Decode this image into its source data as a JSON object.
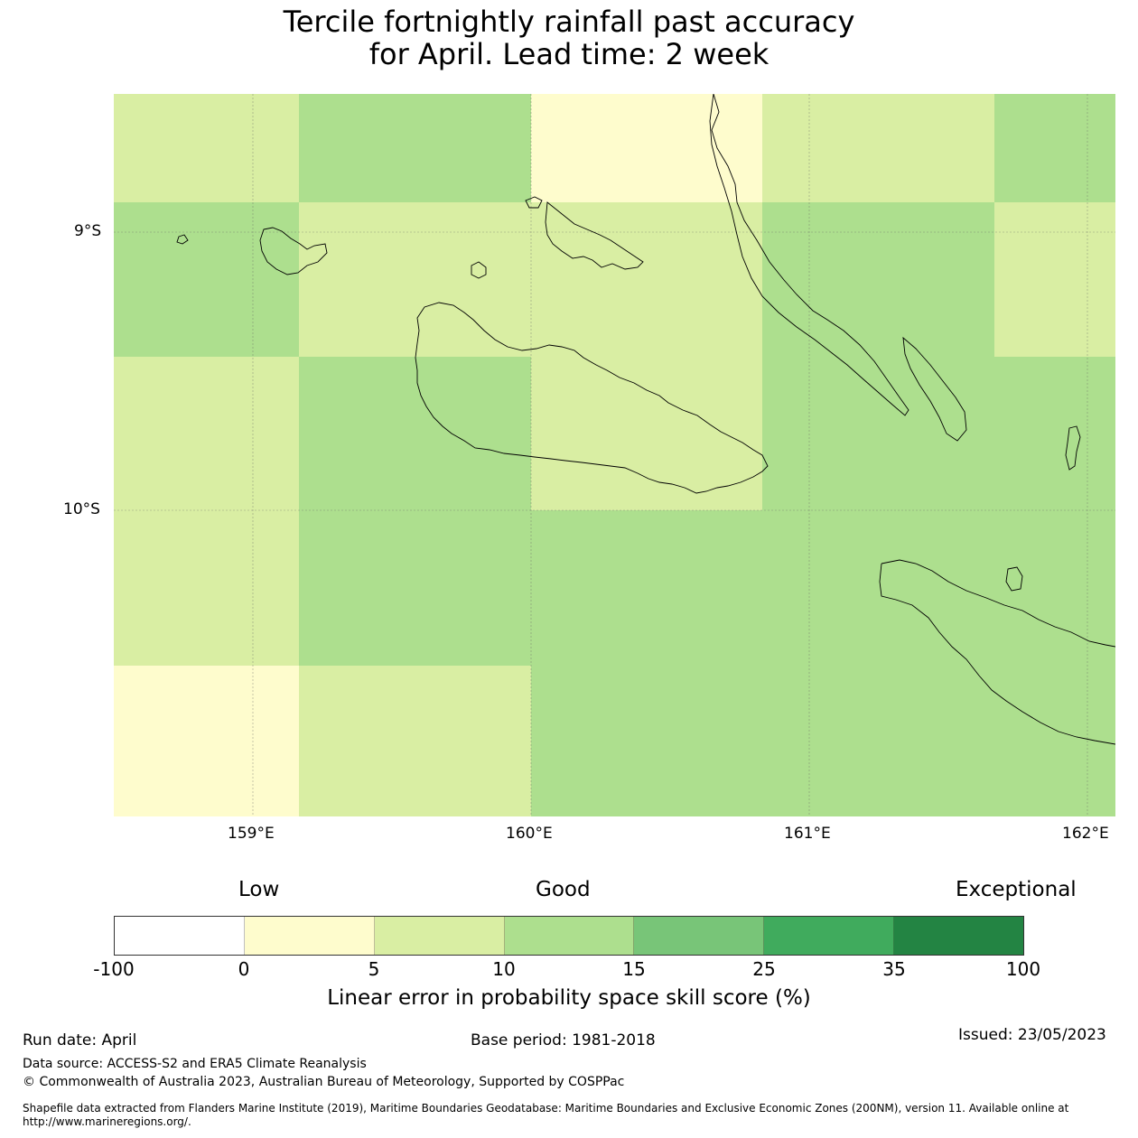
{
  "title_line1": "Tercile fortnightly rainfall past accuracy",
  "title_line2": "for April. Lead time: 2 week",
  "map": {
    "lat_labels": [
      "9°S",
      "10°S"
    ],
    "lon_labels": [
      "159°E",
      "160°E",
      "161°E",
      "162°E"
    ],
    "category_colors": {
      "0-5": "#fefccd",
      "5-10": "#d9eea3",
      "10-15": "#addf8e"
    }
  },
  "legend": {
    "categories": [
      "Low",
      "Good",
      "Exceptional"
    ],
    "ticks": [
      "-100",
      "0",
      "5",
      "10",
      "15",
      "25",
      "35",
      "100"
    ],
    "colors": [
      "#ffffff",
      "#fefccd",
      "#d9eea3",
      "#addf8e",
      "#78c578",
      "#40ab5d",
      "#238443"
    ],
    "label": "Linear error in probability space skill score (%)"
  },
  "footer": {
    "run_date": "Run date: April",
    "base_period": "Base period: 1981-2018",
    "issued": "Issued: 23/05/2023",
    "data_source": "Data source: ACCESS-S2 and ERA5 Climate Reanalysis",
    "copyright": "© Commonwealth of Australia 2023, Australian Bureau of Meteorology, Supported by COSPPac",
    "shapefile_line1": "Shapefile data extracted from Flanders Marine Institute (2019), Maritime Boundaries Geodatabase: Maritime Boundaries and Exclusive Economic Zones (200NM), version 11. Available online at",
    "shapefile_line2": "http://www.marineregions.org/."
  }
}
